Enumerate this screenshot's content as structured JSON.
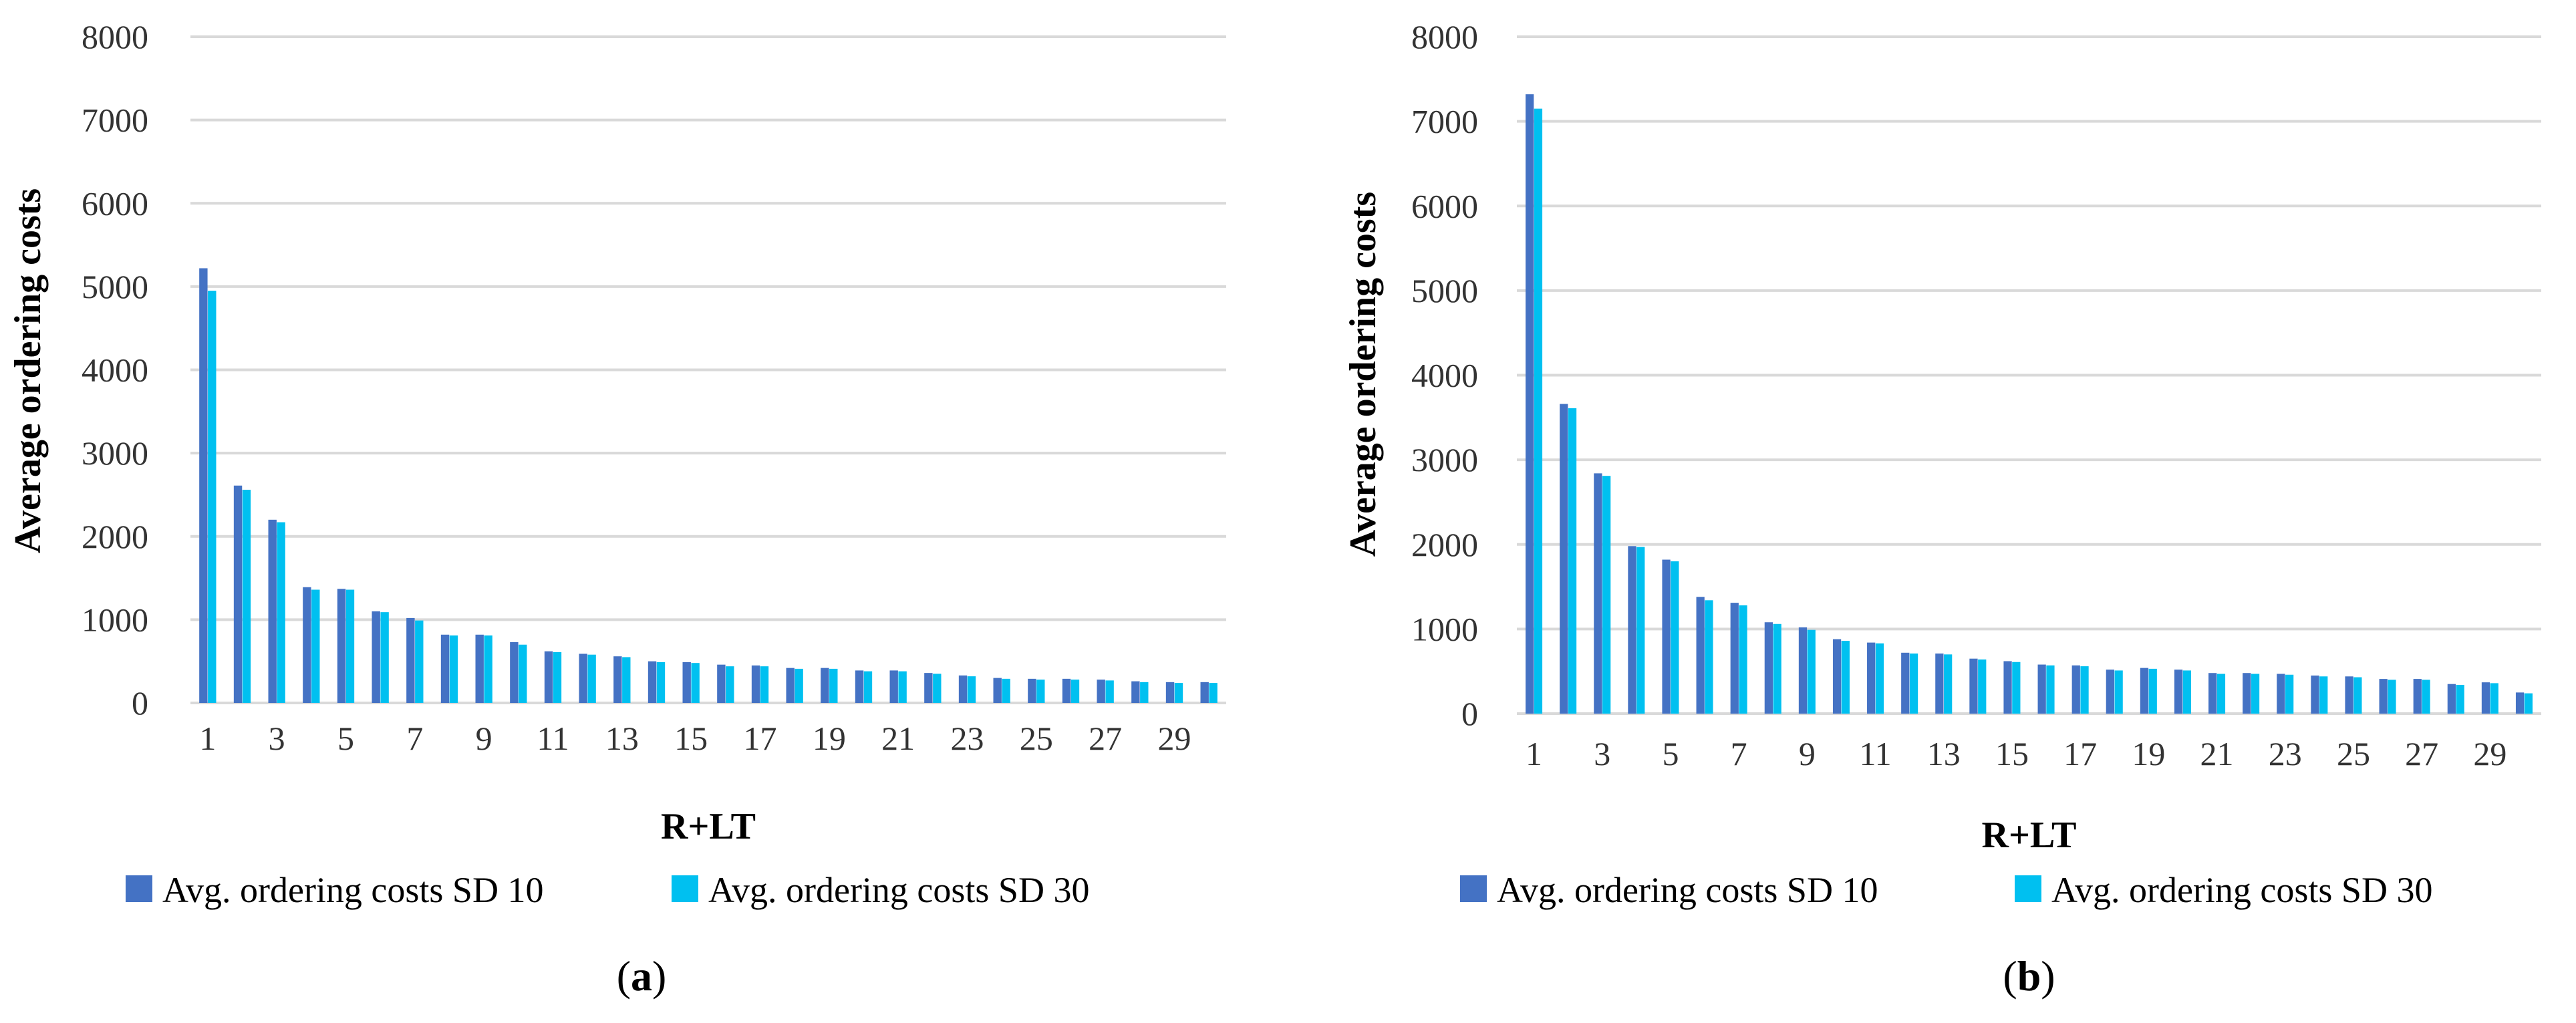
{
  "chart_data": [
    {
      "type": "bar",
      "panel_label": "a",
      "title": "",
      "xlabel": "R+LT",
      "ylabel": "Average ordering costs",
      "ylim": [
        0,
        8000
      ],
      "yticks": [
        0,
        1000,
        2000,
        3000,
        4000,
        5000,
        6000,
        7000,
        8000
      ],
      "categories": [
        1,
        2,
        3,
        4,
        5,
        6,
        7,
        8,
        9,
        10,
        11,
        12,
        13,
        14,
        15,
        16,
        17,
        18,
        19,
        20,
        21,
        22,
        23,
        24,
        25,
        26,
        27,
        28,
        29,
        30
      ],
      "xtick_labels": [
        "1",
        "3",
        "5",
        "7",
        "9",
        "11",
        "13",
        "15",
        "17",
        "19",
        "21",
        "23",
        "25",
        "27",
        "29"
      ],
      "grid": true,
      "legend_position": "bottom",
      "series": [
        {
          "name": "Avg. ordering costs SD 10",
          "color": "#4472C4",
          "values": [
            5220,
            2610,
            2200,
            1390,
            1370,
            1100,
            1020,
            820,
            820,
            730,
            620,
            590,
            560,
            500,
            490,
            460,
            450,
            420,
            420,
            390,
            390,
            360,
            330,
            300,
            290,
            290,
            280,
            260,
            250,
            250
          ]
        },
        {
          "name": "Avg. ordering costs SD 30",
          "color": "#00C0F0",
          "values": [
            4950,
            2560,
            2170,
            1360,
            1360,
            1090,
            990,
            810,
            810,
            700,
            610,
            580,
            550,
            490,
            480,
            440,
            440,
            410,
            410,
            380,
            380,
            350,
            320,
            290,
            280,
            280,
            270,
            250,
            240,
            240
          ]
        }
      ]
    },
    {
      "type": "bar",
      "panel_label": "b",
      "title": "",
      "xlabel": "R+LT",
      "ylabel": "Average ordering costs",
      "ylim": [
        0,
        8000
      ],
      "yticks": [
        0,
        1000,
        2000,
        3000,
        4000,
        5000,
        6000,
        7000,
        8000
      ],
      "categories": [
        1,
        2,
        3,
        4,
        5,
        6,
        7,
        8,
        9,
        10,
        11,
        12,
        13,
        14,
        15,
        16,
        17,
        18,
        19,
        20,
        21,
        22,
        23,
        24,
        25,
        26,
        27,
        28,
        29,
        30
      ],
      "xtick_labels": [
        "1",
        "3",
        "5",
        "7",
        "9",
        "11",
        "13",
        "15",
        "17",
        "19",
        "21",
        "23",
        "25",
        "27",
        "29"
      ],
      "grid": true,
      "legend_position": "bottom",
      "series": [
        {
          "name": "Avg. ordering costs SD 10",
          "color": "#4472C4",
          "values": [
            7320,
            3660,
            2840,
            1980,
            1820,
            1380,
            1310,
            1080,
            1020,
            880,
            840,
            720,
            710,
            650,
            620,
            580,
            570,
            520,
            540,
            520,
            480,
            480,
            470,
            450,
            440,
            410,
            410,
            350,
            370,
            250
          ]
        },
        {
          "name": "Avg. ordering costs SD 30",
          "color": "#00C0F0",
          "values": [
            7150,
            3610,
            2810,
            1970,
            1800,
            1340,
            1280,
            1060,
            990,
            860,
            830,
            710,
            700,
            640,
            610,
            570,
            560,
            510,
            530,
            510,
            470,
            470,
            460,
            440,
            430,
            400,
            400,
            340,
            360,
            240
          ]
        }
      ]
    }
  ]
}
